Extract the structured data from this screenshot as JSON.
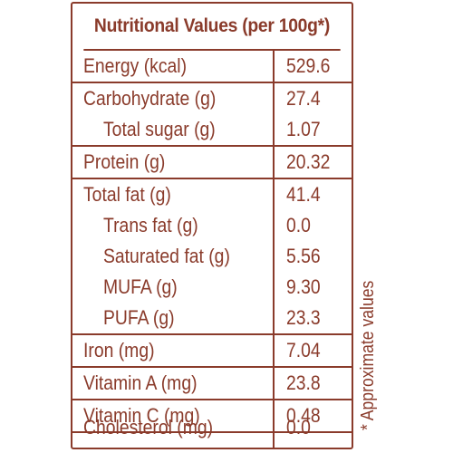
{
  "title": "Nutritional Values (per 100g*)",
  "groups": [
    {
      "rows": [
        {
          "name": "Energy (kcal)",
          "value": "529.6"
        }
      ]
    },
    {
      "rows": [
        {
          "name": "Carbohydrate (g)",
          "value": "27.4"
        },
        {
          "name": "Total sugar (g)",
          "value": "1.07"
        }
      ]
    },
    {
      "rows": [
        {
          "name": "Protein (g)",
          "value": "20.32"
        }
      ]
    },
    {
      "rows": [
        {
          "name": "Total fat (g)",
          "value": "41.4"
        },
        {
          "name": "Trans fat (g)",
          "value": "0.0"
        },
        {
          "name": "Saturated fat (g)",
          "value": "5.56"
        },
        {
          "name": "MUFA (g)",
          "value": "9.30"
        },
        {
          "name": "PUFA (g)",
          "value": "23.3"
        }
      ]
    },
    {
      "rows": [
        {
          "name": "Iron (mg)",
          "value": "7.04"
        }
      ]
    },
    {
      "rows": [
        {
          "name": "Vitamin A (mg)",
          "value": "23.8"
        }
      ]
    },
    {
      "rows": [
        {
          "name": "Vitamin C (mg)",
          "value": "0.48"
        }
      ]
    },
    {
      "rows": [
        {
          "name": "Cholesterol (mg)",
          "value": "0.0"
        }
      ]
    }
  ],
  "footnote": "* Approximate values",
  "colors": {
    "text": "#8a3b2b",
    "border": "#8a3b2b",
    "background": "#ffffff"
  }
}
